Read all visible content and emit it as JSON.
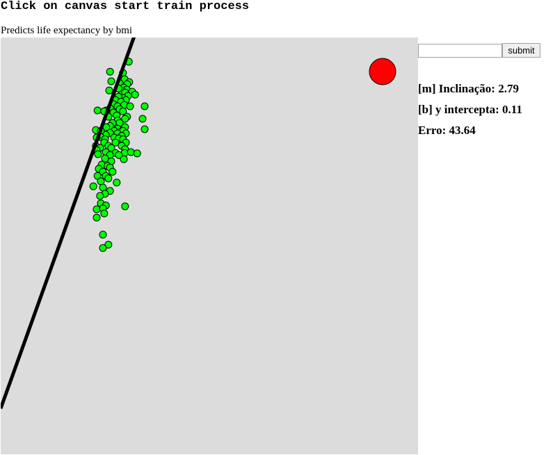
{
  "heading": "Click on canvas start train process",
  "subtitle": "Predicts life expectancy by bmi",
  "form": {
    "input_value": "",
    "input_placeholder": "",
    "submit_label": "submit"
  },
  "stats": {
    "slope_text": "[m] Inclinação: 2.79",
    "intercept_text": "[b] y intercepta: 0.11",
    "error_text": "Erro: 43.64"
  },
  "colors": {
    "canvas_bg": "#dcdcdc",
    "point_fill": "#00ff00",
    "point_stroke": "#000000",
    "line": "#000000",
    "indicator": "#ff0000"
  },
  "chart_data": {
    "type": "scatter",
    "xlim": [
      0,
      1
    ],
    "ylim": [
      0,
      1
    ],
    "regression": {
      "m": 2.79,
      "b": 0.11
    },
    "points": [
      [
        0.307,
        0.942
      ],
      [
        0.262,
        0.918
      ],
      [
        0.293,
        0.915
      ],
      [
        0.297,
        0.9
      ],
      [
        0.265,
        0.895
      ],
      [
        0.308,
        0.893
      ],
      [
        0.285,
        0.89
      ],
      [
        0.303,
        0.888
      ],
      [
        0.295,
        0.88
      ],
      [
        0.302,
        0.875
      ],
      [
        0.29,
        0.872
      ],
      [
        0.282,
        0.878
      ],
      [
        0.298,
        0.868
      ],
      [
        0.26,
        0.873
      ],
      [
        0.315,
        0.87
      ],
      [
        0.305,
        0.86
      ],
      [
        0.293,
        0.855
      ],
      [
        0.282,
        0.858
      ],
      [
        0.275,
        0.85
      ],
      [
        0.3,
        0.85
      ],
      [
        0.322,
        0.863
      ],
      [
        0.288,
        0.846
      ],
      [
        0.27,
        0.84
      ],
      [
        0.296,
        0.838
      ],
      [
        0.31,
        0.835
      ],
      [
        0.28,
        0.835
      ],
      [
        0.262,
        0.83
      ],
      [
        0.253,
        0.825
      ],
      [
        0.285,
        0.828
      ],
      [
        0.345,
        0.835
      ],
      [
        0.232,
        0.825
      ],
      [
        0.248,
        0.823
      ],
      [
        0.293,
        0.823
      ],
      [
        0.27,
        0.82
      ],
      [
        0.278,
        0.813
      ],
      [
        0.258,
        0.81
      ],
      [
        0.303,
        0.81
      ],
      [
        0.298,
        0.805
      ],
      [
        0.34,
        0.805
      ],
      [
        0.28,
        0.801
      ],
      [
        0.268,
        0.795
      ],
      [
        0.285,
        0.795
      ],
      [
        0.262,
        0.788
      ],
      [
        0.253,
        0.785
      ],
      [
        0.28,
        0.781
      ],
      [
        0.298,
        0.785
      ],
      [
        0.345,
        0.78
      ],
      [
        0.228,
        0.778
      ],
      [
        0.24,
        0.776
      ],
      [
        0.272,
        0.776
      ],
      [
        0.288,
        0.774
      ],
      [
        0.293,
        0.776
      ],
      [
        0.262,
        0.771
      ],
      [
        0.28,
        0.77
      ],
      [
        0.3,
        0.77
      ],
      [
        0.252,
        0.766
      ],
      [
        0.29,
        0.764
      ],
      [
        0.24,
        0.761
      ],
      [
        0.23,
        0.76
      ],
      [
        0.272,
        0.76
      ],
      [
        0.283,
        0.758
      ],
      [
        0.25,
        0.756
      ],
      [
        0.293,
        0.756
      ],
      [
        0.248,
        0.748
      ],
      [
        0.275,
        0.748
      ],
      [
        0.3,
        0.748
      ],
      [
        0.228,
        0.74
      ],
      [
        0.258,
        0.74
      ],
      [
        0.29,
        0.74
      ],
      [
        0.238,
        0.735
      ],
      [
        0.265,
        0.735
      ],
      [
        0.298,
        0.732
      ],
      [
        0.23,
        0.73
      ],
      [
        0.252,
        0.725
      ],
      [
        0.275,
        0.723
      ],
      [
        0.297,
        0.723
      ],
      [
        0.312,
        0.725
      ],
      [
        0.233,
        0.72
      ],
      [
        0.262,
        0.718
      ],
      [
        0.283,
        0.718
      ],
      [
        0.25,
        0.71
      ],
      [
        0.327,
        0.722
      ],
      [
        0.295,
        0.708
      ],
      [
        0.265,
        0.703
      ],
      [
        0.242,
        0.695
      ],
      [
        0.256,
        0.692
      ],
      [
        0.235,
        0.685
      ],
      [
        0.262,
        0.688
      ],
      [
        0.268,
        0.678
      ],
      [
        0.245,
        0.678
      ],
      [
        0.252,
        0.668
      ],
      [
        0.232,
        0.668
      ],
      [
        0.278,
        0.652
      ],
      [
        0.258,
        0.662
      ],
      [
        0.24,
        0.655
      ],
      [
        0.222,
        0.643
      ],
      [
        0.245,
        0.64
      ],
      [
        0.262,
        0.632
      ],
      [
        0.25,
        0.625
      ],
      [
        0.238,
        0.62
      ],
      [
        0.24,
        0.602
      ],
      [
        0.252,
        0.597
      ],
      [
        0.23,
        0.588
      ],
      [
        0.298,
        0.595
      ],
      [
        0.245,
        0.59
      ],
      [
        0.248,
        0.578
      ],
      [
        0.23,
        0.568
      ],
      [
        0.245,
        0.527
      ],
      [
        0.258,
        0.503
      ],
      [
        0.245,
        0.495
      ]
    ]
  }
}
